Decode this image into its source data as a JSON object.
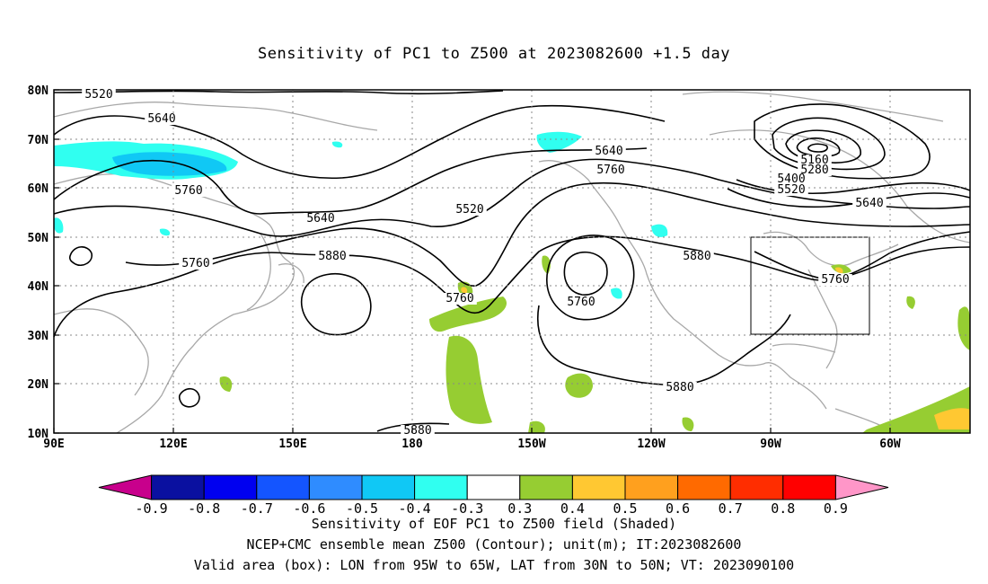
{
  "title": "Sensitivity of PC1 to Z500 at 2023082600 +1.5 day",
  "lat_labels": [
    "80N",
    "70N",
    "60N",
    "50N",
    "40N",
    "30N",
    "20N",
    "10N"
  ],
  "lon_labels": [
    "90E",
    "120E",
    "150E",
    "180",
    "150W",
    "120W",
    "90W",
    "60W"
  ],
  "contour_labels": [
    "5520",
    "5640",
    "5760",
    "5640",
    "5760",
    "5880",
    "5520",
    "5640",
    "5760",
    "5760",
    "5760",
    "5880",
    "5880",
    "5880",
    "5160",
    "5280",
    "5400",
    "5520",
    "5640",
    "5760"
  ],
  "colorbar": {
    "labels": [
      "-0.9",
      "-0.8",
      "-0.7",
      "-0.6",
      "-0.5",
      "-0.4",
      "-0.3",
      "0.3",
      "0.4",
      "0.5",
      "0.6",
      "0.7",
      "0.8",
      "0.9"
    ],
    "colors": [
      "#c8008c",
      "#0a10a0",
      "#0000f0",
      "#1455ff",
      "#2f8cff",
      "#10c8f5",
      "#30fff0",
      "#ffffff",
      "#96cd32",
      "#ffc832",
      "#ffa01e",
      "#ff6a00",
      "#ff2d00",
      "#ff0000",
      "#ff96c8"
    ]
  },
  "caption": {
    "line1": "Sensitivity of EOF PC1 to Z500 field (Shaded)",
    "line2": "NCEP+CMC ensemble mean Z500 (Contour); unit(m); IT:2023082600",
    "line3": "Valid area (box): LON from 95W to 65W, LAT from 30N to 50N; VT: 2023090100"
  }
}
